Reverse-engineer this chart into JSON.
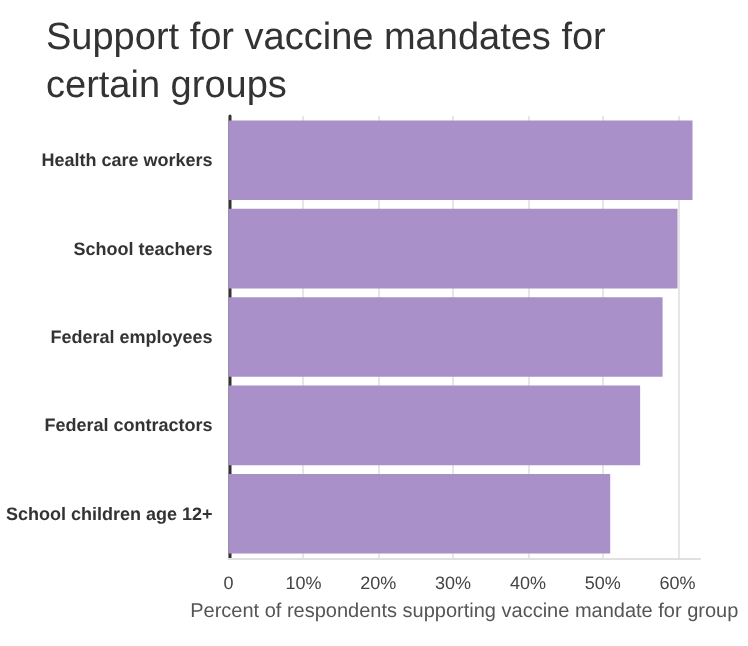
{
  "chart_data": {
    "type": "bar",
    "orientation": "horizontal",
    "title": "Support for vaccine mandates for certain groups",
    "xlabel": "Percent of respondents supporting vaccine mandate for group",
    "categories": [
      "Health care workers",
      "School teachers",
      "Federal employees",
      "Federal contractors",
      "School children age 12+"
    ],
    "values": [
      62,
      60,
      58,
      55,
      51
    ],
    "color": "#a990c8",
    "xlim": [
      0,
      63
    ],
    "xticks": [
      0,
      {
        "value": 10,
        "label": "10%"
      },
      {
        "value": 20,
        "label": "20%"
      },
      {
        "value": 30,
        "label": "30%"
      },
      {
        "value": 40,
        "label": "40%"
      },
      {
        "value": 50,
        "label": "50%"
      },
      {
        "value": 60,
        "label": "60%"
      }
    ],
    "grid": "x"
  }
}
